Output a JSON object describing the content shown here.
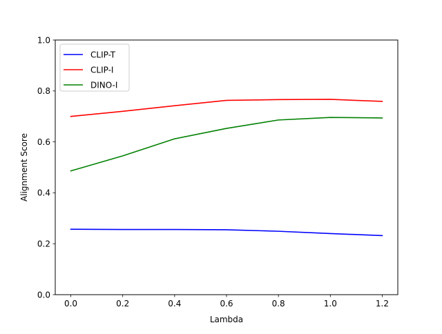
{
  "chart_data": {
    "type": "line",
    "title": "",
    "xlabel": "Lambda",
    "ylabel": "Alignment Score",
    "x": [
      0.0,
      0.2,
      0.4,
      0.6,
      0.8,
      1.0,
      1.2
    ],
    "xlim": [
      -0.06,
      1.26
    ],
    "ylim": [
      0.0,
      1.0
    ],
    "xticks": [
      "0.0",
      "0.2",
      "0.4",
      "0.6",
      "0.8",
      "1.0",
      "1.2"
    ],
    "yticks": [
      "0.0",
      "0.2",
      "0.4",
      "0.6",
      "0.8",
      "1.0"
    ],
    "grid": false,
    "legend_position": "upper-left",
    "series": [
      {
        "name": "CLIP-T",
        "color": "#0000ff",
        "values": [
          0.257,
          0.256,
          0.256,
          0.255,
          0.249,
          0.24,
          0.232
        ]
      },
      {
        "name": "CLIP-I",
        "color": "#ff0000",
        "values": [
          0.7,
          0.72,
          0.742,
          0.763,
          0.766,
          0.767,
          0.759
        ]
      },
      {
        "name": "DINO-I",
        "color": "#008000",
        "values": [
          0.486,
          0.545,
          0.612,
          0.653,
          0.686,
          0.696,
          0.694
        ]
      }
    ]
  }
}
